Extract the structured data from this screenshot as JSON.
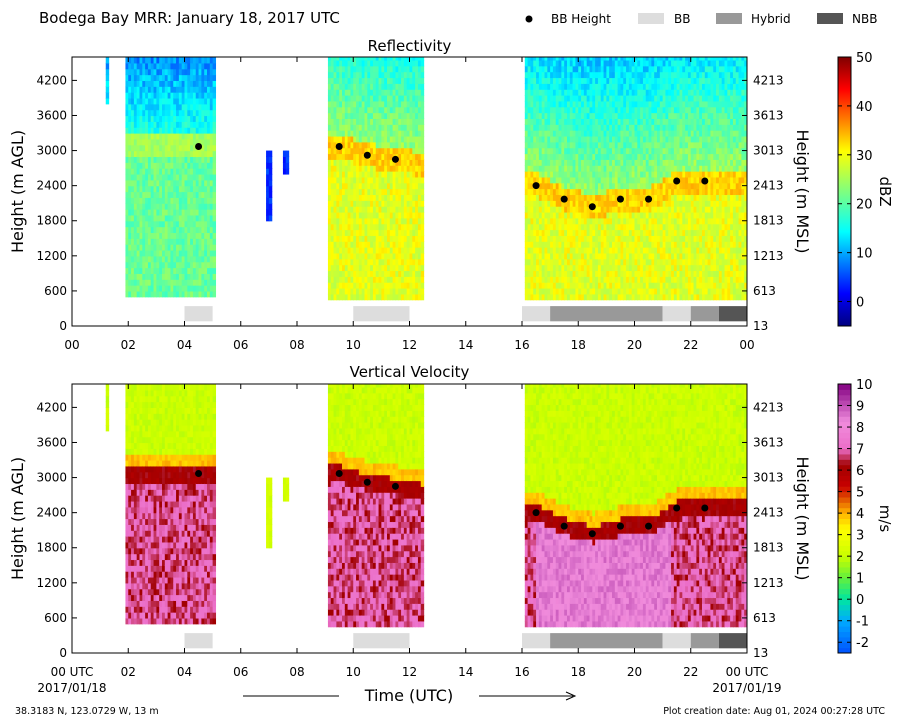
{
  "header": {
    "title": "Bodega Bay MRR:  January 18, 2017 UTC",
    "legend": [
      {
        "label": "BB Height",
        "kind": "dot",
        "color": "#000000"
      },
      {
        "label": "BB",
        "kind": "rect",
        "color": "#dddddd"
      },
      {
        "label": "Hybrid",
        "kind": "rect",
        "color": "#999999"
      },
      {
        "label": "NBB",
        "kind": "rect",
        "color": "#555555"
      }
    ]
  },
  "footer": {
    "location": "38.3183 N, 123.0729 W, 13 m",
    "creation": "Plot creation date: Aug 01, 2024 00:27:28 UTC",
    "xlabel": "Time (UTC)",
    "start_time": "00 UTC",
    "start_date": "2017/01/18",
    "end_time": "00 UTC",
    "end_date": "2017/01/19"
  },
  "colors": {
    "bb": "#dddddd",
    "hybrid": "#999999",
    "nbb": "#555555",
    "dot": "#000000"
  },
  "chart_data": [
    {
      "type": "heatmap",
      "title": "Reflectivity",
      "ylabel": "Height (m AGL)",
      "ylabel_right": "Height (m MSL)",
      "xlim": [
        0,
        24
      ],
      "ylim": [
        0,
        4600
      ],
      "x_ticks": [
        "00",
        "02",
        "04",
        "06",
        "08",
        "10",
        "12",
        "14",
        "16",
        "18",
        "20",
        "22",
        "00"
      ],
      "y_ticks_left": [
        "0",
        "600",
        "1200",
        "1800",
        "2400",
        "3000",
        "3600",
        "4200"
      ],
      "y_ticks_right": [
        "13",
        "613",
        "1213",
        "1813",
        "2413",
        "3013",
        "3613",
        "4213"
      ],
      "colorbar": {
        "label": "dBZ",
        "range": [
          -5,
          50
        ],
        "ticks": [
          "0",
          "10",
          "20",
          "30",
          "40",
          "50"
        ],
        "tick_values": [
          0,
          10,
          20,
          30,
          40,
          50
        ],
        "colormap": "jet"
      },
      "bb_height": {
        "x": [
          4.5,
          9.5,
          10.5,
          11.5,
          16.5,
          17.5,
          18.5,
          19.5,
          20.5,
          21.5,
          22.5
        ],
        "y": [
          3070,
          3070,
          2920,
          2850,
          2400,
          2170,
          2040,
          2170,
          2170,
          2480,
          2480
        ]
      },
      "bb_classification": [
        {
          "start": 4.0,
          "end": 5.0,
          "class": "BB"
        },
        {
          "start": 10.0,
          "end": 12.0,
          "class": "BB"
        },
        {
          "start": 16.0,
          "end": 17.0,
          "class": "BB"
        },
        {
          "start": 17.0,
          "end": 21.0,
          "class": "Hybrid"
        },
        {
          "start": 21.0,
          "end": 22.0,
          "class": "BB"
        },
        {
          "start": 22.0,
          "end": 23.0,
          "class": "Hybrid"
        },
        {
          "start": 23.0,
          "end": 24.0,
          "class": "NBB"
        }
      ]
    },
    {
      "type": "heatmap",
      "title": "Vertical Velocity",
      "ylabel": "Height (m AGL)",
      "ylabel_right": "Height (m MSL)",
      "xlim": [
        0,
        24
      ],
      "ylim": [
        0,
        4600
      ],
      "x_ticks": [
        "",
        "02",
        "04",
        "06",
        "08",
        "10",
        "12",
        "14",
        "16",
        "18",
        "20",
        "22",
        ""
      ],
      "y_ticks_left": [
        "0",
        "600",
        "1200",
        "1800",
        "2400",
        "3000",
        "3600",
        "4200"
      ],
      "y_ticks_right": [
        "13",
        "613",
        "1213",
        "1813",
        "2413",
        "3013",
        "3613",
        "4213"
      ],
      "colorbar": {
        "label": "m/s",
        "range": [
          -2.5,
          10
        ],
        "ticks": [
          "-2",
          "-1",
          "0",
          "1",
          "2",
          "3",
          "4",
          "5",
          "6",
          "7",
          "8",
          "9",
          "10"
        ],
        "tick_values": [
          -2,
          -1,
          0,
          1,
          2,
          3,
          4,
          5,
          6,
          7,
          8,
          9,
          10
        ],
        "colormap": "velocity"
      },
      "bb_height": {
        "x": [
          4.5,
          9.5,
          10.5,
          11.5,
          16.5,
          17.5,
          18.5,
          19.5,
          20.5,
          21.5,
          22.5
        ],
        "y": [
          3070,
          3070,
          2920,
          2850,
          2400,
          2170,
          2040,
          2170,
          2170,
          2480,
          2480
        ]
      },
      "bb_classification": [
        {
          "start": 4.0,
          "end": 5.0,
          "class": "BB"
        },
        {
          "start": 10.0,
          "end": 12.0,
          "class": "BB"
        },
        {
          "start": 16.0,
          "end": 17.0,
          "class": "BB"
        },
        {
          "start": 17.0,
          "end": 21.0,
          "class": "Hybrid"
        },
        {
          "start": 21.0,
          "end": 22.0,
          "class": "BB"
        },
        {
          "start": 22.0,
          "end": 23.0,
          "class": "Hybrid"
        },
        {
          "start": 23.0,
          "end": 24.0,
          "class": "NBB"
        }
      ]
    }
  ]
}
